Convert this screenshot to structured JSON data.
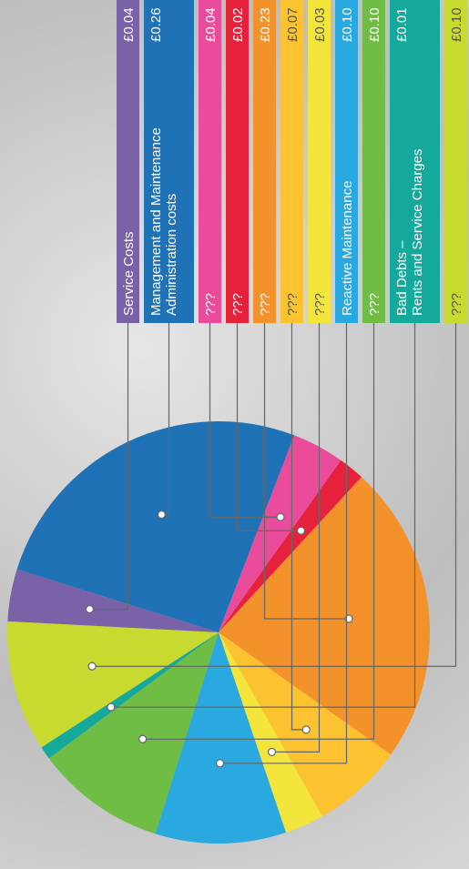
{
  "chart_data": {
    "type": "pie",
    "categories": [
      "Service Costs",
      "Management and Maintenance\nAdministration costs",
      "???",
      "???",
      "???",
      "???",
      "???",
      "Reactive Maintenance",
      "???",
      "Bad Debts –\nRents and Service Charges",
      "???"
    ],
    "values": [
      0.04,
      0.26,
      0.04,
      0.02,
      0.23,
      0.07,
      0.03,
      0.1,
      0.1,
      0.01,
      0.1
    ],
    "value_labels": [
      "£0.04",
      "£0.26",
      "£0.04",
      "£0.02",
      "£0.23",
      "£0.07",
      "£0.03",
      "£0.10",
      "£0.10",
      "£0.01",
      "£0.10"
    ],
    "colors": [
      "#7a62a8",
      "#1f72b6",
      "#ea4c9b",
      "#e6213b",
      "#f3922a",
      "#fcc22f",
      "#f4e53c",
      "#2aa8e0",
      "#6fbd45",
      "#15a99b",
      "#c8d92f"
    ]
  }
}
